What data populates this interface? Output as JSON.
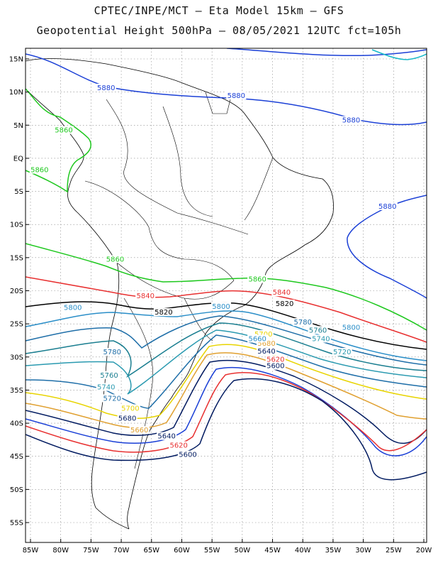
{
  "header": {
    "line1": "CPTEC/INPE/MCT –  Eta Model 15km – GFS",
    "line2": "Geopotential Height 500hPa – 08/05/2021 12UTC fct=105h"
  },
  "axes": {
    "lat_ticks": [
      {
        "lat": 15,
        "label": "15N"
      },
      {
        "lat": 10,
        "label": "10N"
      },
      {
        "lat": 5,
        "label": "5N"
      },
      {
        "lat": 0,
        "label": "EQ"
      },
      {
        "lat": -5,
        "label": "5S"
      },
      {
        "lat": -10,
        "label": "10S"
      },
      {
        "lat": -15,
        "label": "15S"
      },
      {
        "lat": -20,
        "label": "20S"
      },
      {
        "lat": -25,
        "label": "25S"
      },
      {
        "lat": -30,
        "label": "30S"
      },
      {
        "lat": -35,
        "label": "35S"
      },
      {
        "lat": -40,
        "label": "40S"
      },
      {
        "lat": -45,
        "label": "45S"
      },
      {
        "lat": -50,
        "label": "50S"
      },
      {
        "lat": -55,
        "label": "55S"
      }
    ],
    "lon_ticks": [
      {
        "lon": -85,
        "label": "85W"
      },
      {
        "lon": -80,
        "label": "80W"
      },
      {
        "lon": -75,
        "label": "75W"
      },
      {
        "lon": -70,
        "label": "70W"
      },
      {
        "lon": -65,
        "label": "65W"
      },
      {
        "lon": -60,
        "label": "60W"
      },
      {
        "lon": -55,
        "label": "55W"
      },
      {
        "lon": -50,
        "label": "50W"
      },
      {
        "lon": -45,
        "label": "45W"
      },
      {
        "lon": -40,
        "label": "40W"
      },
      {
        "lon": -35,
        "label": "35W"
      },
      {
        "lon": -30,
        "label": "30W"
      },
      {
        "lon": -25,
        "label": "25W"
      },
      {
        "lon": -20,
        "label": "20W"
      }
    ]
  },
  "contour_labels": [
    {
      "text": "5880",
      "lon": -72.5,
      "lat": 10.4,
      "color": "#1a3fd6"
    },
    {
      "text": "5880",
      "lon": -51.0,
      "lat": 9.2,
      "color": "#1a3fd6"
    },
    {
      "text": "5880",
      "lon": -32.0,
      "lat": 5.5,
      "color": "#1a3fd6"
    },
    {
      "text": "5880",
      "lon": -26.0,
      "lat": -7.5,
      "color": "#1a3fd6"
    },
    {
      "text": "5860",
      "lon": -79.5,
      "lat": 4.0,
      "color": "#1ec81e"
    },
    {
      "text": "5860",
      "lon": -83.5,
      "lat": -2.0,
      "color": "#1ec81e"
    },
    {
      "text": "5860",
      "lon": -71.0,
      "lat": -15.5,
      "color": "#1ec81e"
    },
    {
      "text": "5860",
      "lon": -47.5,
      "lat": -18.5,
      "color": "#1ec81e"
    },
    {
      "text": "5840",
      "lon": -66.0,
      "lat": -21.0,
      "color": "#e83030"
    },
    {
      "text": "5840",
      "lon": -43.5,
      "lat": -20.5,
      "color": "#e83030"
    },
    {
      "text": "5820",
      "lon": -63.0,
      "lat": -23.5,
      "color": "#000000"
    },
    {
      "text": "5820",
      "lon": -43.0,
      "lat": -22.2,
      "color": "#000000"
    },
    {
      "text": "5800",
      "lon": -78.0,
      "lat": -22.8,
      "color": "#2a8ec8"
    },
    {
      "text": "5800",
      "lon": -53.5,
      "lat": -22.6,
      "color": "#2a8ec8"
    },
    {
      "text": "5800",
      "lon": -32.0,
      "lat": -25.8,
      "color": "#2a8ec8"
    },
    {
      "text": "5780",
      "lon": -40.0,
      "lat": -25.0,
      "color": "#1e6ea8"
    },
    {
      "text": "5780",
      "lon": -71.5,
      "lat": -29.5,
      "color": "#1e6ea8"
    },
    {
      "text": "5760",
      "lon": -37.5,
      "lat": -26.2,
      "color": "#1a7e90"
    },
    {
      "text": "5760",
      "lon": -72.0,
      "lat": -33.0,
      "color": "#1a7e90"
    },
    {
      "text": "5740",
      "lon": -37.0,
      "lat": -27.5,
      "color": "#2a9ab0"
    },
    {
      "text": "5740",
      "lon": -72.5,
      "lat": -34.8,
      "color": "#2a9ab0"
    },
    {
      "text": "5720",
      "lon": -33.5,
      "lat": -29.5,
      "color": "#2a9ab0"
    },
    {
      "text": "5720",
      "lon": -71.5,
      "lat": -36.5,
      "color": "#1e6ea8"
    },
    {
      "text": "5700",
      "lon": -46.5,
      "lat": -26.8,
      "color": "#e8d400"
    },
    {
      "text": "5700",
      "lon": -68.5,
      "lat": -38.0,
      "color": "#e8d400"
    },
    {
      "text": "5680",
      "lon": -69.0,
      "lat": -39.5,
      "color": "#001a60"
    },
    {
      "text": "5680",
      "lon": -46.0,
      "lat": -28.2,
      "color": "#e0a030"
    },
    {
      "text": "5660",
      "lon": -67.0,
      "lat": -41.3,
      "color": "#e0a030"
    },
    {
      "text": "5660",
      "lon": -47.5,
      "lat": -27.5,
      "color": "#2a8ec8"
    },
    {
      "text": "5640",
      "lon": -62.5,
      "lat": -42.2,
      "color": "#001a60"
    },
    {
      "text": "5640",
      "lon": -46.0,
      "lat": -29.4,
      "color": "#001a60"
    },
    {
      "text": "5620",
      "lon": -60.5,
      "lat": -43.6,
      "color": "#e83030"
    },
    {
      "text": "5620",
      "lon": -44.5,
      "lat": -30.6,
      "color": "#e83030"
    },
    {
      "text": "5600",
      "lon": -59.0,
      "lat": -45.0,
      "color": "#001a60"
    },
    {
      "text": "5600",
      "lon": -44.5,
      "lat": -31.6,
      "color": "#001a60"
    }
  ]
}
